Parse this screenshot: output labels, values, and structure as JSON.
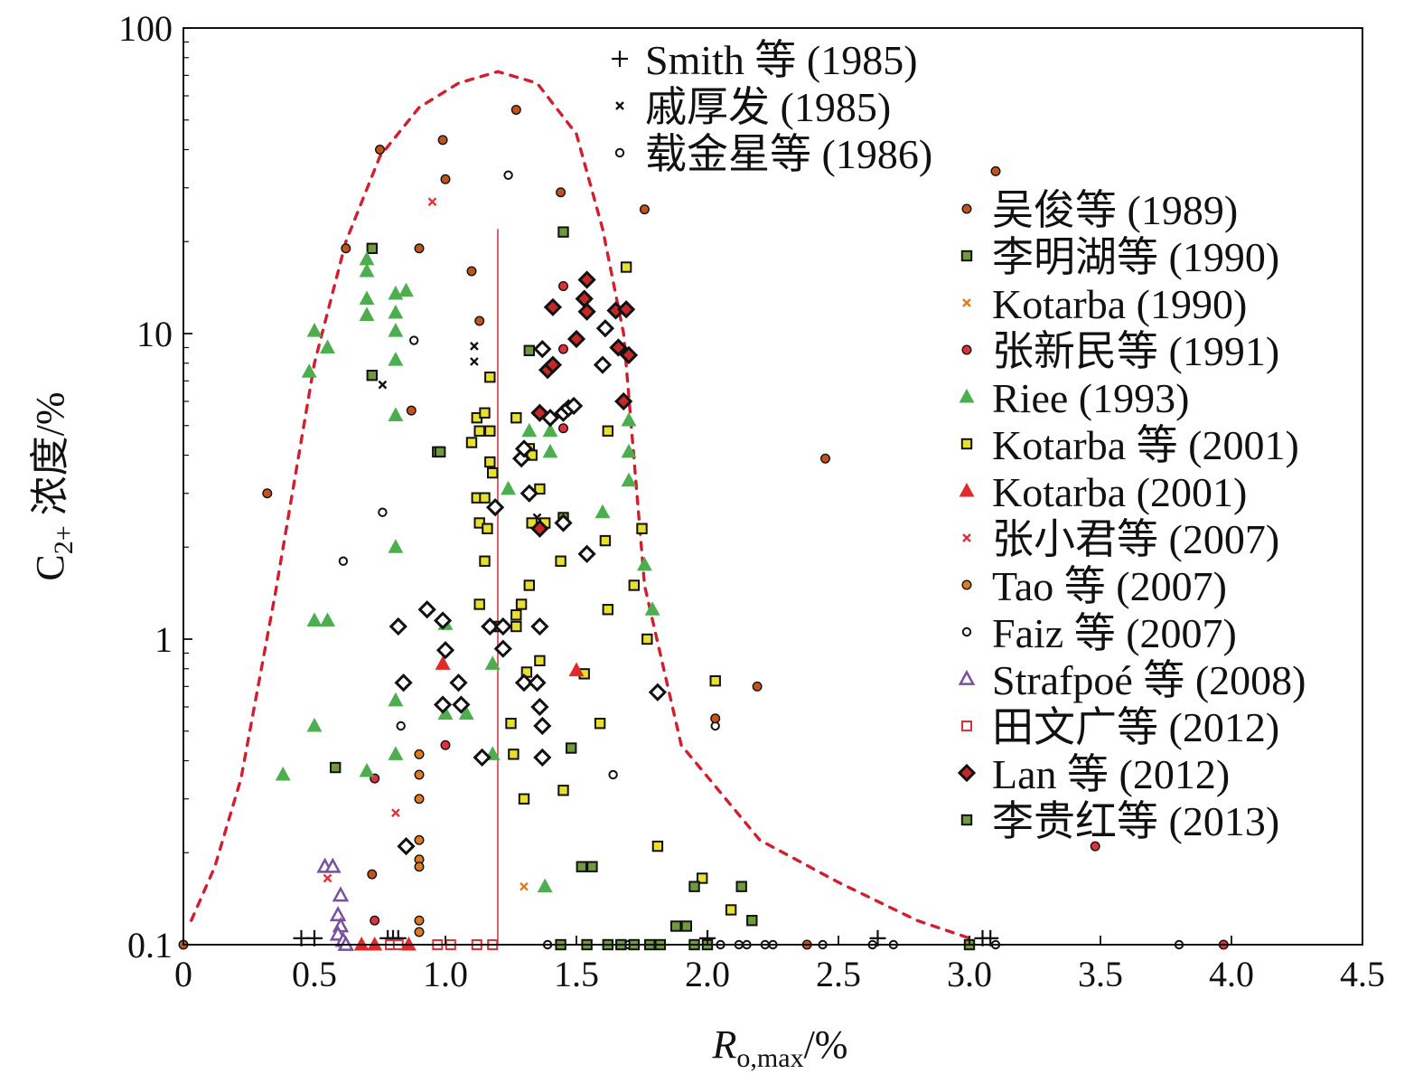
{
  "chart_data": {
    "type": "scatter",
    "x_scale": "linear",
    "y_scale": "log",
    "xlim": [
      0,
      4.5
    ],
    "ylim": [
      0.1,
      100
    ],
    "x_ticks": [
      "0",
      "0.5",
      "1.0",
      "1.5",
      "2.0",
      "2.5",
      "3.0",
      "3.5",
      "4.0",
      "4.5"
    ],
    "y_ticks": [
      "0.1",
      "1",
      "10",
      "100"
    ],
    "xlabel": {
      "main": "R",
      "sub": "o,max",
      "suffix": "/%"
    },
    "ylabel": {
      "main": "C",
      "sub": "2+",
      "suffix": " 浓度/%"
    },
    "grid": false,
    "legend_position": "top-right",
    "vertical_line": {
      "x": 1.2,
      "y_from": 0.1,
      "y_to": 22,
      "color": "#d11f2f"
    },
    "envelope": {
      "color": "#d11f2f",
      "points": [
        [
          0.03,
          0.12
        ],
        [
          0.12,
          0.18
        ],
        [
          0.22,
          0.35
        ],
        [
          0.35,
          1.4
        ],
        [
          0.5,
          8
        ],
        [
          0.62,
          20
        ],
        [
          0.75,
          38
        ],
        [
          0.9,
          55
        ],
        [
          1.05,
          66
        ],
        [
          1.2,
          72
        ],
        [
          1.35,
          66
        ],
        [
          1.5,
          45
        ],
        [
          1.6,
          22
        ],
        [
          1.68,
          10
        ],
        [
          1.76,
          1.5
        ],
        [
          1.9,
          0.45
        ],
        [
          2.2,
          0.22
        ],
        [
          2.5,
          0.16
        ],
        [
          2.8,
          0.12
        ],
        [
          3.0,
          0.105
        ]
      ]
    },
    "series": [
      {
        "name": "Smith 等 (1985)",
        "marker": "plus",
        "color": "#111111",
        "points": [
          [
            0.45,
            0.105
          ],
          [
            0.5,
            0.105
          ],
          [
            0.78,
            0.105
          ],
          [
            0.8,
            0.105
          ],
          [
            0.82,
            0.105
          ],
          [
            2.0,
            0.105
          ],
          [
            2.65,
            0.105
          ],
          [
            3.05,
            0.105
          ],
          [
            3.08,
            0.105
          ]
        ]
      },
      {
        "name": "戚厚发 (1985)",
        "marker": "x-small",
        "color": "#111111",
        "points": [
          [
            0.76,
            6.8
          ],
          [
            1.11,
            9.1
          ],
          [
            1.11,
            8.1
          ],
          [
            1.35,
            2.5
          ],
          [
            1.48,
            0.44
          ]
        ]
      },
      {
        "name": "载金星等 (1986)",
        "marker": "open-circle",
        "color": "#111111",
        "points": [
          [
            0.88,
            9.5
          ],
          [
            1.24,
            33
          ],
          [
            0.76,
            2.6
          ],
          [
            0.61,
            1.8
          ],
          [
            0.83,
            0.52
          ],
          [
            1.64,
            0.36
          ],
          [
            2.03,
            0.52
          ],
          [
            1.39,
            0.1
          ],
          [
            2.44,
            0.1
          ],
          [
            2.63,
            0.1
          ],
          [
            2.71,
            0.1
          ],
          [
            3.1,
            0.1
          ],
          [
            3.8,
            0.1
          ]
        ]
      },
      {
        "name": "吴俊等 (1989)",
        "marker": "dot",
        "color": "#c2541b",
        "points": [
          [
            0.75,
            40
          ],
          [
            0.99,
            43
          ],
          [
            1.27,
            54
          ],
          [
            1.0,
            32
          ],
          [
            1.44,
            29
          ],
          [
            1.76,
            25.5
          ],
          [
            0.62,
            19
          ],
          [
            0.9,
            19
          ],
          [
            1.1,
            16
          ],
          [
            1.13,
            11
          ],
          [
            0.87,
            5.6
          ],
          [
            0.32,
            3.0
          ],
          [
            3.1,
            34
          ],
          [
            2.45,
            3.9
          ],
          [
            2.19,
            0.7
          ],
          [
            2.03,
            0.55
          ],
          [
            0.72,
            0.17
          ],
          [
            2.38,
            0.1
          ],
          [
            0.0,
            0.1
          ]
        ]
      },
      {
        "name": "李明湖等 (1990)",
        "marker": "square",
        "color": "#6f9a3e",
        "points": [
          [
            1.45,
            21.5
          ],
          [
            0.72,
            19
          ],
          [
            1.32,
            8.8
          ],
          [
            0.58,
            0.38
          ],
          [
            1.45,
            2.5
          ],
          [
            1.48,
            0.44
          ],
          [
            1.44,
            0.1
          ],
          [
            3.0,
            0.1
          ]
        ]
      },
      {
        "name": "Kotarba (1990)",
        "marker": "x-small",
        "color": "#e07a1f",
        "points": [
          [
            1.3,
            0.155
          ]
        ]
      },
      {
        "name": "张新民等 (1991)",
        "marker": "dot",
        "color": "#e0303a",
        "points": [
          [
            1.45,
            14.3
          ],
          [
            1.45,
            8.9
          ],
          [
            1.45,
            4.9
          ],
          [
            1.0,
            0.45
          ],
          [
            0.73,
            0.35
          ],
          [
            0.73,
            0.12
          ],
          [
            3.48,
            0.21
          ],
          [
            3.97,
            0.1
          ]
        ]
      },
      {
        "name": "Riee (1993)",
        "marker": "triangle",
        "color": "#4dae4f",
        "points": [
          [
            0.7,
            17.5
          ],
          [
            0.7,
            16
          ],
          [
            0.7,
            13
          ],
          [
            0.7,
            11.5
          ],
          [
            0.81,
            13.5
          ],
          [
            0.81,
            11.7
          ],
          [
            0.85,
            13.8
          ],
          [
            0.81,
            10.2
          ],
          [
            0.5,
            10.2
          ],
          [
            0.55,
            9
          ],
          [
            0.48,
            7.5
          ],
          [
            0.81,
            8.2
          ],
          [
            0.81,
            5.4
          ],
          [
            0.81,
            2.0
          ],
          [
            0.5,
            1.15
          ],
          [
            0.55,
            1.15
          ],
          [
            1.0,
            1.12
          ],
          [
            1.0,
            0.57
          ],
          [
            1.08,
            0.57
          ],
          [
            1.18,
            0.42
          ],
          [
            1.18,
            0.83
          ],
          [
            0.5,
            0.52
          ],
          [
            0.38,
            0.36
          ],
          [
            0.7,
            0.37
          ],
          [
            0.81,
            0.42
          ],
          [
            0.81,
            0.63
          ],
          [
            1.24,
            3.1
          ],
          [
            1.32,
            4.8
          ],
          [
            1.4,
            4.8
          ],
          [
            1.4,
            4.1
          ],
          [
            1.6,
            2.6
          ],
          [
            1.7,
            5.2
          ],
          [
            1.7,
            4.1
          ],
          [
            1.7,
            3.3
          ],
          [
            1.76,
            1.75
          ],
          [
            1.79,
            1.25
          ],
          [
            1.38,
            0.155
          ]
        ]
      },
      {
        "name": "Kotarba 等 (2001)",
        "marker": "square",
        "color": "#e8e02c",
        "points": [
          [
            1.69,
            16.5
          ],
          [
            1.17,
            7.2
          ],
          [
            1.12,
            5.3
          ],
          [
            1.15,
            5.5
          ],
          [
            1.1,
            4.4
          ],
          [
            1.13,
            4.8
          ],
          [
            1.17,
            4.8
          ],
          [
            1.27,
            5.3
          ],
          [
            1.32,
            4.2
          ],
          [
            1.33,
            4.0
          ],
          [
            1.62,
            4.8
          ],
          [
            1.17,
            3.8
          ],
          [
            1.18,
            3.5
          ],
          [
            1.12,
            2.9
          ],
          [
            1.15,
            2.9
          ],
          [
            1.13,
            2.4
          ],
          [
            1.16,
            2.3
          ],
          [
            1.33,
            2.4
          ],
          [
            1.38,
            2.4
          ],
          [
            1.36,
            3.1
          ],
          [
            1.61,
            2.1
          ],
          [
            1.75,
            2.3
          ],
          [
            1.15,
            1.8
          ],
          [
            1.44,
            1.8
          ],
          [
            1.13,
            1.3
          ],
          [
            1.29,
            1.3
          ],
          [
            1.32,
            1.5
          ],
          [
            1.27,
            1.2
          ],
          [
            1.72,
            1.5
          ],
          [
            1.62,
            1.25
          ],
          [
            1.27,
            1.1
          ],
          [
            1.18,
            1.1
          ],
          [
            1.21,
            1.1
          ],
          [
            1.36,
            0.85
          ],
          [
            1.31,
            0.78
          ],
          [
            1.53,
            0.77
          ],
          [
            1.77,
            1.0
          ],
          [
            2.03,
            0.73
          ],
          [
            1.25,
            0.53
          ],
          [
            1.26,
            0.42
          ],
          [
            1.3,
            0.3
          ],
          [
            1.59,
            0.53
          ],
          [
            1.45,
            0.32
          ],
          [
            1.81,
            0.21
          ],
          [
            1.98,
            0.165
          ],
          [
            2.09,
            0.13
          ]
        ]
      },
      {
        "name": "Kotarba (2001)",
        "marker": "triangle",
        "color": "#e02a2a",
        "points": [
          [
            0.99,
            0.83
          ],
          [
            1.5,
            0.79
          ],
          [
            0.68,
            0.1
          ],
          [
            0.73,
            0.1
          ],
          [
            0.86,
            0.1
          ]
        ]
      },
      {
        "name": "张小君等 (2007)",
        "marker": "x-small",
        "color": "#e0303a",
        "points": [
          [
            0.95,
            27
          ],
          [
            0.81,
            0.27
          ],
          [
            0.55,
            0.165
          ]
        ]
      },
      {
        "name": "Tao 等 (2007)",
        "marker": "dot",
        "color": "#e07a1f",
        "points": [
          [
            0.9,
            0.42
          ],
          [
            0.9,
            0.36
          ],
          [
            0.9,
            0.3
          ],
          [
            0.9,
            0.22
          ],
          [
            0.9,
            0.19
          ],
          [
            0.9,
            0.18
          ],
          [
            0.9,
            0.12
          ],
          [
            0.9,
            0.11
          ]
        ]
      },
      {
        "name": "Faiz 等 (2007)",
        "marker": "open-circle",
        "color": "#111111",
        "points": [
          [
            1.62,
            0.1
          ],
          [
            1.7,
            0.1
          ],
          [
            2.05,
            0.1
          ],
          [
            2.12,
            0.1
          ],
          [
            2.15,
            0.1
          ],
          [
            2.22,
            0.1
          ],
          [
            2.25,
            0.1
          ]
        ]
      },
      {
        "name": "Strafpoé 等 (2008)",
        "marker": "open-triangle",
        "color": "#7a4fa0",
        "points": [
          [
            0.54,
            0.18
          ],
          [
            0.57,
            0.18
          ],
          [
            0.6,
            0.145
          ],
          [
            0.59,
            0.125
          ],
          [
            0.6,
            0.115
          ],
          [
            0.59,
            0.108
          ],
          [
            0.61,
            0.103
          ],
          [
            0.62,
            0.1
          ]
        ]
      },
      {
        "name": "田文广等 (2012)",
        "marker": "open-square",
        "color": "#e0303a",
        "points": [
          [
            0.79,
            0.1
          ],
          [
            0.82,
            0.1
          ],
          [
            0.97,
            0.1
          ],
          [
            1.02,
            0.1
          ],
          [
            1.12,
            0.1
          ],
          [
            1.18,
            0.1
          ]
        ]
      },
      {
        "name": "Lan 等 (2012)",
        "marker": "diamond-red",
        "color": "#c62828",
        "points": [
          [
            1.54,
            15
          ],
          [
            1.41,
            12.2
          ],
          [
            1.53,
            13
          ],
          [
            1.54,
            11.8
          ],
          [
            1.65,
            11.9
          ],
          [
            1.69,
            12
          ],
          [
            1.5,
            9.6
          ],
          [
            1.66,
            9
          ],
          [
            1.7,
            8.5
          ],
          [
            1.39,
            7.6
          ],
          [
            1.41,
            7.9
          ],
          [
            1.36,
            5.5
          ],
          [
            1.68,
            6
          ],
          [
            1.36,
            2.3
          ]
        ]
      },
      {
        "name": "李贵红等 (2013)",
        "marker": "square",
        "color": "#6f9a3e",
        "points": [
          [
            0.72,
            7.3
          ],
          [
            0.97,
            4.1
          ],
          [
            0.98,
            4.1
          ],
          [
            1.52,
            0.18
          ],
          [
            1.56,
            0.18
          ],
          [
            1.88,
            0.115
          ],
          [
            1.92,
            0.115
          ],
          [
            2.17,
            0.12
          ],
          [
            1.95,
            0.155
          ],
          [
            2.13,
            0.155
          ],
          [
            1.54,
            0.1
          ],
          [
            1.62,
            0.1
          ],
          [
            1.67,
            0.1
          ],
          [
            1.72,
            0.1
          ],
          [
            1.78,
            0.1
          ],
          [
            1.82,
            0.1
          ],
          [
            1.95,
            0.1
          ],
          [
            2.0,
            0.1
          ]
        ]
      },
      {
        "name": "",
        "marker": "diamond-open",
        "color": "#111111",
        "points": [
          [
            1.37,
            8.9
          ],
          [
            1.61,
            10.4
          ],
          [
            1.6,
            7.9
          ],
          [
            1.4,
            5.3
          ],
          [
            1.45,
            5.5
          ],
          [
            1.47,
            5.7
          ],
          [
            1.49,
            5.8
          ],
          [
            1.29,
            3.9
          ],
          [
            1.3,
            4.2
          ],
          [
            1.32,
            3.0
          ],
          [
            1.19,
            2.7
          ],
          [
            1.45,
            2.4
          ],
          [
            1.54,
            1.9
          ],
          [
            0.93,
            1.25
          ],
          [
            0.99,
            1.15
          ],
          [
            0.82,
            1.1
          ],
          [
            1.17,
            1.1
          ],
          [
            1.22,
            1.1
          ],
          [
            1.36,
            1.1
          ],
          [
            1.0,
            0.92
          ],
          [
            1.22,
            0.93
          ],
          [
            0.84,
            0.72
          ],
          [
            1.05,
            0.72
          ],
          [
            1.3,
            0.72
          ],
          [
            1.35,
            0.72
          ],
          [
            0.99,
            0.61
          ],
          [
            1.06,
            0.61
          ],
          [
            1.36,
            0.6
          ],
          [
            1.37,
            0.52
          ],
          [
            1.37,
            0.41
          ],
          [
            1.14,
            0.41
          ],
          [
            1.81,
            0.67
          ],
          [
            0.85,
            0.21
          ]
        ]
      }
    ]
  }
}
